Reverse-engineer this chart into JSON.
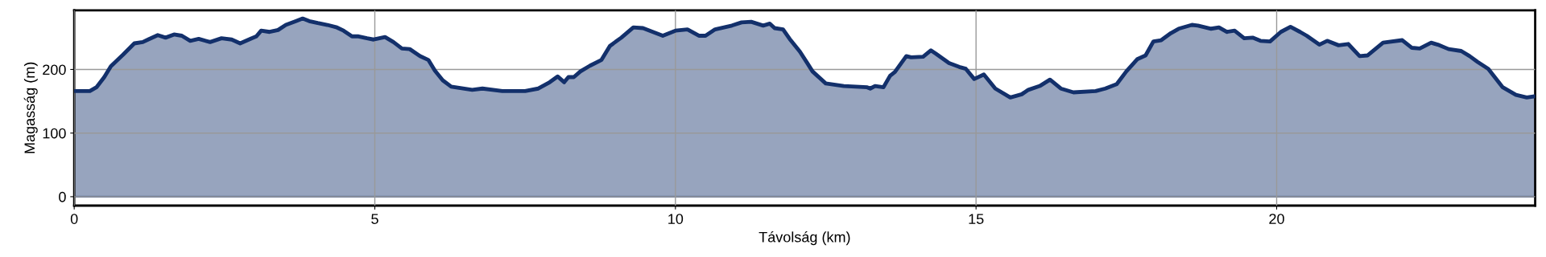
{
  "chart_data": {
    "type": "area",
    "xlabel": "Távolság (km)",
    "ylabel": "Magasság (m)",
    "xlim": [
      0,
      24.3
    ],
    "ylim": [
      -14,
      293
    ],
    "xticks": [
      0,
      5,
      10,
      15,
      20
    ],
    "yticks": [
      0,
      100,
      200
    ],
    "grid": true,
    "legend": false,
    "ref_lines": [
      {
        "axis": "y",
        "value": 0,
        "color": "#5a6f9c"
      }
    ],
    "series": [
      {
        "color": "#13306b",
        "x": [
          0,
          0.26,
          0.37,
          0.5,
          0.61,
          0.81,
          1.0,
          1.14,
          1.25,
          1.39,
          1.52,
          1.66,
          1.79,
          1.93,
          2.07,
          2.26,
          2.45,
          2.62,
          2.76,
          2.95,
          3.03,
          3.11,
          3.25,
          3.39,
          3.52,
          3.69,
          3.8,
          3.91,
          4.05,
          4.21,
          4.37,
          4.48,
          4.62,
          4.73,
          4.87,
          4.98,
          5.17,
          5.31,
          5.45,
          5.58,
          5.75,
          5.89,
          6.0,
          6.13,
          6.27,
          6.62,
          6.79,
          7.12,
          7.5,
          7.72,
          7.91,
          8.04,
          8.15,
          8.22,
          8.31,
          8.42,
          8.58,
          8.77,
          8.91,
          9.1,
          9.3,
          9.46,
          9.79,
          10.0,
          10.2,
          10.39,
          10.5,
          10.66,
          10.94,
          11.1,
          11.26,
          11.46,
          11.57,
          11.65,
          11.79,
          11.9,
          12.07,
          12.2,
          12.28,
          12.36,
          12.5,
          12.8,
          13.19,
          13.24,
          13.32,
          13.46,
          13.57,
          13.65,
          13.84,
          13.92,
          14.12,
          14.25,
          14.33,
          14.55,
          14.72,
          14.83,
          14.97,
          15.13,
          15.32,
          15.57,
          15.76,
          15.87,
          16.06,
          16.23,
          16.41,
          16.62,
          16.99,
          17.15,
          17.34,
          17.5,
          17.68,
          17.82,
          17.95,
          18.08,
          18.24,
          18.37,
          18.59,
          18.69,
          18.91,
          19.04,
          19.17,
          19.3,
          19.46,
          19.6,
          19.73,
          19.89,
          20.07,
          20.23,
          20.39,
          20.5,
          20.71,
          20.84,
          21.03,
          21.19,
          21.38,
          21.51,
          21.77,
          22.09,
          22.25,
          22.38,
          22.57,
          22.68,
          22.86,
          23.07,
          23.21,
          23.34,
          23.52,
          23.76,
          23.98,
          24.16,
          24.3
        ],
        "values": [
          166,
          166,
          172,
          188,
          205,
          223,
          241,
          243,
          248,
          254,
          250,
          255,
          253,
          245,
          248,
          243,
          249,
          247,
          241,
          249,
          252,
          261,
          259,
          262,
          270,
          276,
          280,
          276,
          273,
          270,
          266,
          261,
          252,
          252,
          249,
          247,
          251,
          243,
          233,
          232,
          221,
          215,
          198,
          183,
          173,
          168,
          170,
          166,
          166,
          170,
          180,
          189,
          180,
          188,
          188,
          197,
          206,
          215,
          237,
          250,
          266,
          265,
          253,
          261,
          263,
          253,
          253,
          263,
          269,
          274,
          275,
          269,
          272,
          265,
          263,
          248,
          228,
          209,
          197,
          190,
          178,
          174,
          172,
          170,
          174,
          172,
          190,
          196,
          221,
          219,
          220,
          230,
          225,
          210,
          204,
          201,
          185,
          192,
          170,
          156,
          161,
          168,
          174,
          184,
          170,
          164,
          166,
          170,
          177,
          197,
          216,
          222,
          244,
          246,
          257,
          264,
          270,
          269,
          264,
          266,
          259,
          261,
          249,
          250,
          245,
          244,
          259,
          267,
          259,
          253,
          239,
          245,
          238,
          240,
          221,
          222,
          242,
          246,
          234,
          233,
          242,
          239,
          232,
          229,
          221,
          212,
          201,
          172,
          160,
          156,
          158
        ]
      }
    ]
  }
}
